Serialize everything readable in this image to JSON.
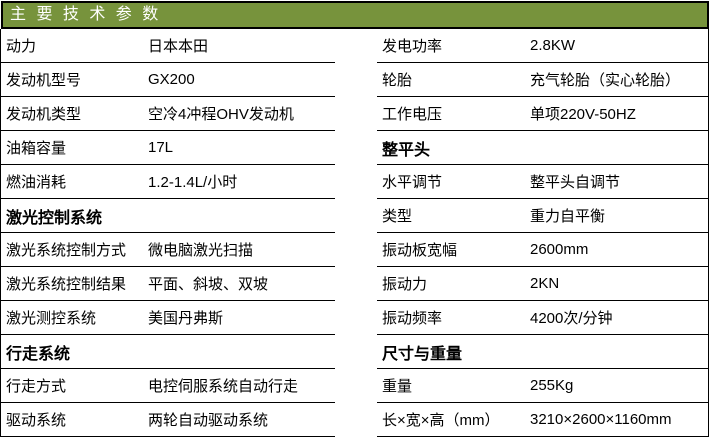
{
  "title": "主 要 技 术 参 数",
  "colors": {
    "header_bg": "#77933C",
    "header_text": "#ffffff",
    "border": "#000000",
    "text": "#000000"
  },
  "left_table": {
    "rows": [
      {
        "label": "动力",
        "value": "日本本田",
        "section": false
      },
      {
        "label": "发动机型号",
        "value": "GX200",
        "section": false
      },
      {
        "label": "发动机类型",
        "value": "空冷4冲程OHV发动机",
        "section": false
      },
      {
        "label": "油箱容量",
        "value": "17L",
        "section": false
      },
      {
        "label": "燃油消耗",
        "value": "1.2-1.4L/小时",
        "section": false
      },
      {
        "label": "激光控制系统",
        "value": "",
        "section": true
      },
      {
        "label": "激光系统控制方式",
        "value": "微电脑激光扫描",
        "section": false
      },
      {
        "label": "激光系统控制结果",
        "value": "平面、斜坡、双坡",
        "section": false
      },
      {
        "label": "激光测控系统",
        "value": "美国丹弗斯",
        "section": false
      },
      {
        "label": "行走系统",
        "value": "",
        "section": true
      },
      {
        "label": "行走方式",
        "value": "电控伺服系统自动行走",
        "section": false
      },
      {
        "label": "驱动系统",
        "value": "两轮自动驱动系统",
        "section": false
      }
    ]
  },
  "right_table": {
    "rows": [
      {
        "label": "发电功率",
        "value": "2.8KW",
        "section": false
      },
      {
        "label": "轮胎",
        "value": "充气轮胎（实心轮胎）",
        "section": false
      },
      {
        "label": "工作电压",
        "value": "单项220V-50HZ",
        "section": false
      },
      {
        "label": "整平头",
        "value": "",
        "section": true
      },
      {
        "label": "水平调节",
        "value": "整平头自调节",
        "section": false
      },
      {
        "label": "类型",
        "value": "重力自平衡",
        "section": false
      },
      {
        "label": "振动板宽幅",
        "value": "2600mm",
        "section": false
      },
      {
        "label": "振动力",
        "value": "2KN",
        "section": false
      },
      {
        "label": "振动频率",
        "value": "4200次/分钟",
        "section": false
      },
      {
        "label": "尺寸与重量",
        "value": "",
        "section": true
      },
      {
        "label": "重量",
        "value": "255Kg",
        "section": false
      },
      {
        "label": "长×宽×高（mm）",
        "value": "3210×2600×1160mm",
        "section": false
      }
    ]
  }
}
